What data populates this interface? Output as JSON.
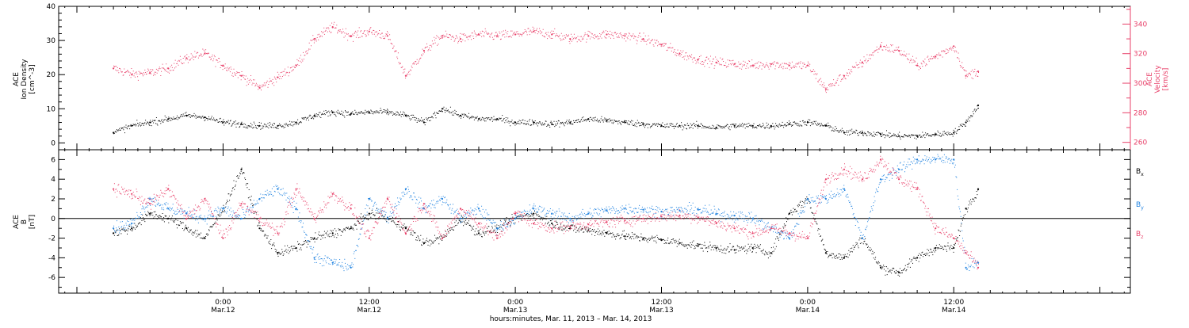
{
  "chart_data": [
    {
      "type": "scatter",
      "panel": "top",
      "ylabel_left_lines": [
        "ACE",
        "Ion Density",
        "[cm^-3]"
      ],
      "ylabel_right_lines": [
        "ACE",
        "Velocity",
        "[km/s]"
      ],
      "ylim_left": [
        -2,
        40
      ],
      "ylim_right": [
        255,
        352
      ],
      "yticks_left": [
        "0",
        "10",
        "20",
        "30",
        "40"
      ],
      "yticks_right": [
        "260",
        "280",
        "300",
        "320",
        "340"
      ],
      "grid": false,
      "series": [
        {
          "axis": "left",
          "color": "#000000",
          "x_hours": [
            -9.0,
            -7.5,
            -6.0,
            -4.5,
            -3.0,
            -1.5,
            0.0,
            1.5,
            3.0,
            4.5,
            6.0,
            7.5,
            9.0,
            10.5,
            12.0,
            13.5,
            15.0,
            16.5,
            18.0,
            19.5,
            21.0,
            22.5,
            24.0,
            25.5,
            27.0,
            28.5,
            30.0,
            31.5,
            33.0,
            34.5,
            36.0,
            37.5,
            39.0,
            40.5,
            42.0,
            43.5,
            45.0,
            46.5,
            48.0,
            49.5,
            51.0,
            52.5,
            54.0,
            55.5,
            57.0,
            58.5,
            60.0,
            61.0,
            62.0
          ],
          "values": [
            3,
            5,
            6,
            7,
            8,
            7.5,
            6,
            5.5,
            5,
            5,
            6,
            8,
            9,
            8.5,
            9,
            9,
            8,
            6,
            10,
            8,
            7,
            7,
            6,
            6,
            5.5,
            6,
            7,
            6.5,
            6,
            5.5,
            5,
            5,
            5,
            4.5,
            5,
            5,
            5,
            5.5,
            6,
            5,
            3,
            3,
            2.5,
            2,
            2,
            2.5,
            3,
            6,
            11
          ]
        },
        {
          "axis": "right",
          "color": "#e8416a",
          "x_hours": [
            -9.0,
            -7.5,
            -6.0,
            -4.5,
            -3.0,
            -1.5,
            0.0,
            1.5,
            3.0,
            4.5,
            6.0,
            7.5,
            9.0,
            10.5,
            12.0,
            13.5,
            15.0,
            16.5,
            18.0,
            19.5,
            21.0,
            22.5,
            24.0,
            25.5,
            27.0,
            28.5,
            30.0,
            31.5,
            33.0,
            34.5,
            36.0,
            37.5,
            39.0,
            40.5,
            42.0,
            43.5,
            45.0,
            46.5,
            48.0,
            49.5,
            51.0,
            52.5,
            54.0,
            55.5,
            57.0,
            58.5,
            60.0,
            61.0,
            62.0
          ],
          "values": [
            310,
            306,
            307,
            310,
            317,
            320,
            312,
            305,
            297,
            304,
            312,
            330,
            338,
            332,
            335,
            332,
            305,
            322,
            332,
            330,
            333,
            332,
            333,
            335,
            333,
            330,
            332,
            333,
            332,
            330,
            326,
            320,
            316,
            314,
            313,
            312,
            313,
            312,
            312,
            296,
            305,
            314,
            325,
            322,
            312,
            318,
            325,
            305,
            308
          ]
        }
      ]
    },
    {
      "type": "scatter",
      "panel": "bottom",
      "ylabel_left_lines": [
        "ACE",
        "B",
        "[nT]"
      ],
      "ylim": [
        -7.6,
        7.0
      ],
      "yticks": [
        "-6",
        "-4",
        "-2",
        "0",
        "2",
        "4",
        "6"
      ],
      "zero_line": true,
      "grid": false,
      "series": [
        {
          "name": "Bx",
          "legend_main": "B",
          "legend_sub": "x",
          "color": "#000000",
          "x_hours": [
            -9.0,
            -7.5,
            -6.0,
            -4.5,
            -3.0,
            -1.5,
            0.0,
            1.5,
            3.0,
            4.5,
            6.0,
            7.5,
            9.0,
            10.5,
            12.0,
            13.5,
            15.0,
            16.5,
            18.0,
            19.5,
            21.0,
            22.5,
            24.0,
            25.5,
            27.0,
            28.5,
            30.0,
            31.5,
            33.0,
            34.5,
            36.0,
            37.5,
            39.0,
            40.5,
            42.0,
            43.5,
            45.0,
            46.5,
            48.0,
            49.5,
            51.0,
            52.5,
            54.0,
            55.5,
            57.0,
            58.5,
            60.0,
            61.0,
            62.0
          ],
          "values": [
            -1.5,
            -1.0,
            0.5,
            0.0,
            -1.0,
            -2.0,
            1.0,
            5.0,
            -1.0,
            -3.5,
            -3.0,
            -2.0,
            -1.5,
            -1.0,
            0.5,
            0.0,
            -1.0,
            -2.5,
            -2.0,
            0.0,
            -1.5,
            -1.0,
            0.0,
            0.5,
            -0.5,
            -1.0,
            -1.2,
            -1.5,
            -1.8,
            -2.0,
            -2.2,
            -2.5,
            -2.8,
            -3.0,
            -3.2,
            -3.0,
            -3.5,
            0.5,
            2.0,
            -3.5,
            -4.0,
            -2.0,
            -5.0,
            -5.5,
            -4.0,
            -3.0,
            -3.0,
            1.0,
            3.0
          ]
        },
        {
          "name": "By",
          "legend_main": "B",
          "legend_sub": "y",
          "color": "#1f82e0",
          "x_hours": [
            -9.0,
            -7.5,
            -6.0,
            -4.5,
            -3.0,
            -1.5,
            0.0,
            1.5,
            3.0,
            4.5,
            6.0,
            7.5,
            9.0,
            10.5,
            12.0,
            13.5,
            15.0,
            16.5,
            18.0,
            19.5,
            21.0,
            22.5,
            24.0,
            25.5,
            27.0,
            28.5,
            30.0,
            31.5,
            33.0,
            34.5,
            36.0,
            37.5,
            39.0,
            40.5,
            42.0,
            43.5,
            45.0,
            46.5,
            48.0,
            49.5,
            51.0,
            52.5,
            54.0,
            55.5,
            57.0,
            58.5,
            60.0,
            61.0,
            62.0
          ],
          "values": [
            -1.0,
            -0.5,
            2.0,
            1.0,
            0.5,
            0.0,
            1.0,
            0.0,
            2.0,
            3.0,
            1.0,
            -4.0,
            -4.5,
            -5.0,
            2.0,
            0.0,
            3.0,
            1.0,
            2.0,
            0.0,
            1.0,
            -1.0,
            0.0,
            1.0,
            0.5,
            0.0,
            0.5,
            0.8,
            1.0,
            0.9,
            0.7,
            0.8,
            0.9,
            0.5,
            0.3,
            0.0,
            -1.0,
            -2.0,
            2.0,
            2.0,
            3.0,
            -2.0,
            4.0,
            5.0,
            6.0,
            6.0,
            6.0,
            -5.0,
            -4.5
          ]
        },
        {
          "name": "Bz",
          "legend_main": "B",
          "legend_sub": "z",
          "color": "#e8416a",
          "x_hours": [
            -9.0,
            -7.5,
            -6.0,
            -4.5,
            -3.0,
            -1.5,
            0.0,
            1.5,
            3.0,
            4.5,
            6.0,
            7.5,
            9.0,
            10.5,
            12.0,
            13.5,
            15.0,
            16.5,
            18.0,
            19.5,
            21.0,
            22.5,
            24.0,
            25.5,
            27.0,
            28.5,
            30.0,
            31.5,
            33.0,
            34.5,
            36.0,
            37.5,
            39.0,
            40.5,
            42.0,
            43.5,
            45.0,
            46.5,
            48.0,
            49.5,
            51.0,
            52.5,
            54.0,
            55.5,
            57.0,
            58.5,
            60.0,
            61.0,
            62.0
          ],
          "values": [
            3.0,
            2.5,
            1.5,
            3.0,
            0.0,
            2.0,
            -2.0,
            1.5,
            0.0,
            -1.5,
            3.0,
            0.0,
            2.5,
            1.0,
            -2.0,
            2.0,
            -1.5,
            1.5,
            -2.0,
            1.0,
            -0.5,
            -2.0,
            0.5,
            -0.5,
            -1.0,
            -0.8,
            -0.6,
            -0.4,
            -0.2,
            0.0,
            0.2,
            0.3,
            0.1,
            -0.5,
            -1.0,
            -1.5,
            -1.0,
            -1.5,
            -2.0,
            4.0,
            5.0,
            4.0,
            6.0,
            4.0,
            3.0,
            -1.0,
            -2.0,
            -3.5,
            -5.0
          ]
        }
      ]
    }
  ],
  "x_axis": {
    "xlim_hours": [
      -13.5,
      74.5
    ],
    "ticks": [
      {
        "hour": 0,
        "time": "0:00",
        "date": "Mar.12"
      },
      {
        "hour": 12,
        "time": "12:00",
        "date": "Mar.12"
      },
      {
        "hour": 24,
        "time": "0:00",
        "date": "Mar.13"
      },
      {
        "hour": 36,
        "time": "12:00",
        "date": "Mar.13"
      },
      {
        "hour": 48,
        "time": "0:00",
        "date": "Mar.14"
      },
      {
        "hour": 60,
        "time": "12:00",
        "date": "Mar.14"
      }
    ],
    "xlabel": "hours:minutes, Mar. 11, 2013 – Mar. 14, 2013"
  }
}
